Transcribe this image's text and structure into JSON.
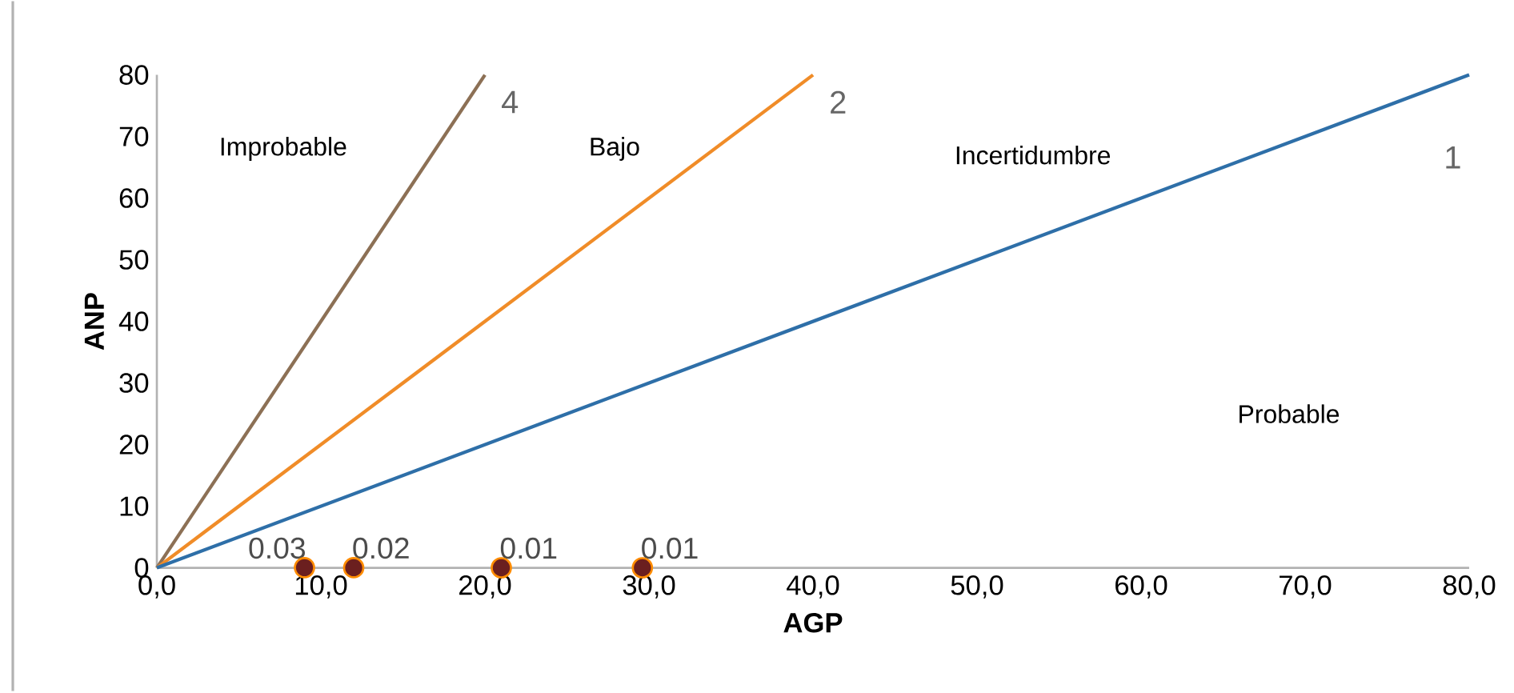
{
  "chart_data": {
    "type": "line",
    "xlabel": "AGP",
    "ylabel": "ANP",
    "xlim": [
      0,
      80
    ],
    "ylim": [
      0,
      80
    ],
    "xticks": [
      {
        "value": 0,
        "label": "0,0"
      },
      {
        "value": 10,
        "label": "10,0"
      },
      {
        "value": 20,
        "label": "20,0"
      },
      {
        "value": 30,
        "label": "30,0"
      },
      {
        "value": 40,
        "label": "40,0"
      },
      {
        "value": 50,
        "label": "50,0"
      },
      {
        "value": 60,
        "label": "60,0"
      },
      {
        "value": 70,
        "label": "70,0"
      },
      {
        "value": 80,
        "label": "80,0"
      }
    ],
    "yticks": [
      0,
      10,
      20,
      30,
      40,
      50,
      60,
      70,
      80
    ],
    "series": [
      {
        "name": "4",
        "color": "#8c7055",
        "x": [
          0,
          20
        ],
        "values": [
          0,
          80
        ],
        "marker": "none"
      },
      {
        "name": "2",
        "color": "#f08c28",
        "x": [
          0,
          40
        ],
        "values": [
          0,
          80
        ],
        "marker": "none"
      },
      {
        "name": "1",
        "color": "#2e6fa8",
        "x": [
          0,
          80
        ],
        "values": [
          0,
          80
        ],
        "marker": "none"
      },
      {
        "type": "scatter",
        "color": "#6b1f1f",
        "x": [
          9,
          12,
          21,
          29.6
        ],
        "values": [
          0.03,
          0.02,
          0.01,
          0.01
        ],
        "marker": "circle",
        "value_labels": [
          "0.03",
          "0.02",
          "0.01",
          "0.01"
        ]
      }
    ],
    "annotations": [
      "Improbable",
      "Bajo",
      "Incertidumbre",
      "Probable"
    ]
  }
}
